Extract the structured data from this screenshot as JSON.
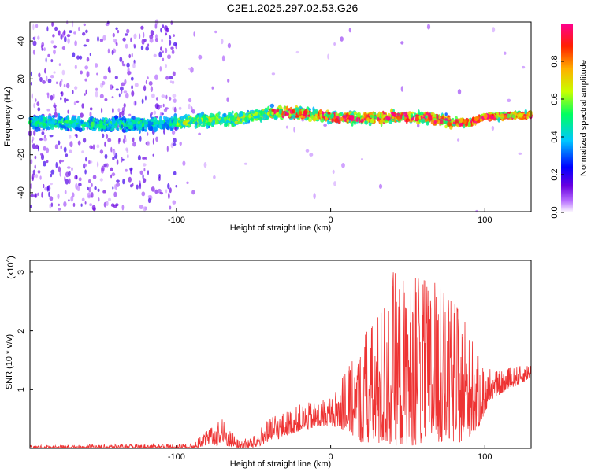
{
  "title": "C2E1.2025.297.02.53.G26",
  "chart_data": [
    {
      "type": "heatmap",
      "name": "spectrogram",
      "xlabel": "Height of straight line (km)",
      "ylabel": "Frequency (Hz)",
      "xlim": [
        -195,
        130
      ],
      "ylim": [
        -50,
        50
      ],
      "xticks": [
        -100,
        0,
        100
      ],
      "yticks": [
        -40,
        -20,
        0,
        20,
        40
      ],
      "xtick_labels": [
        "-100",
        "0",
        "100"
      ],
      "ytick_labels": [
        "-40",
        "-20",
        "0",
        "20",
        "40"
      ],
      "colorbar": {
        "label": "Normalized spectral amplitude",
        "range": [
          0,
          1
        ],
        "ticks": [
          0.0,
          0.2,
          0.4,
          0.6,
          0.8
        ],
        "tick_labels": [
          "0.0",
          "0.2",
          "0.4",
          "0.6",
          "0.8"
        ]
      },
      "ridge_center_hz": [
        {
          "x": -190,
          "f": -3
        },
        {
          "x": -150,
          "f": -4
        },
        {
          "x": -110,
          "f": -4
        },
        {
          "x": -90,
          "f": -2
        },
        {
          "x": -60,
          "f": -1
        },
        {
          "x": -40,
          "f": 2
        },
        {
          "x": -20,
          "f": 2
        },
        {
          "x": 0,
          "f": 0
        },
        {
          "x": 20,
          "f": -1
        },
        {
          "x": 40,
          "f": 0
        },
        {
          "x": 60,
          "f": 0
        },
        {
          "x": 80,
          "f": -3
        },
        {
          "x": 90,
          "f": -3
        },
        {
          "x": 100,
          "f": 0
        },
        {
          "x": 130,
          "f": 1
        }
      ]
    },
    {
      "type": "line",
      "name": "snr",
      "xlabel": "Height of straight line (km)",
      "ylabel": "SNR (10 * v/v)",
      "scale_label": "(x10",
      "scale_exponent": "4",
      "scale_close": ")",
      "xlim": [
        -195,
        130
      ],
      "ylim": [
        0,
        3.2
      ],
      "xticks": [
        -100,
        0,
        100
      ],
      "yticks": [
        1,
        2,
        3
      ],
      "xtick_labels": [
        "-100",
        "0",
        "100"
      ],
      "ytick_labels": [
        "1",
        "2",
        "3"
      ],
      "color": "#ee3333",
      "envelope": [
        {
          "x": -195,
          "lo": 0.0,
          "hi": 0.05
        },
        {
          "x": -90,
          "lo": 0.0,
          "hi": 0.08
        },
        {
          "x": -80,
          "lo": 0.05,
          "hi": 0.3
        },
        {
          "x": -70,
          "lo": 0.05,
          "hi": 0.5
        },
        {
          "x": -60,
          "lo": 0.0,
          "hi": 0.15
        },
        {
          "x": -50,
          "lo": 0.0,
          "hi": 0.2
        },
        {
          "x": -40,
          "lo": 0.1,
          "hi": 0.5
        },
        {
          "x": -20,
          "lo": 0.3,
          "hi": 0.75
        },
        {
          "x": 0,
          "lo": 0.4,
          "hi": 0.85
        },
        {
          "x": 10,
          "lo": 0.3,
          "hi": 1.3
        },
        {
          "x": 20,
          "lo": 0.1,
          "hi": 1.8
        },
        {
          "x": 35,
          "lo": 0.05,
          "hi": 2.6
        },
        {
          "x": 40,
          "lo": 0.05,
          "hi": 3.0
        },
        {
          "x": 55,
          "lo": 0.05,
          "hi": 2.9
        },
        {
          "x": 70,
          "lo": 0.1,
          "hi": 2.8
        },
        {
          "x": 85,
          "lo": 0.1,
          "hi": 2.3
        },
        {
          "x": 95,
          "lo": 0.3,
          "hi": 1.6
        },
        {
          "x": 105,
          "lo": 0.85,
          "hi": 1.3
        },
        {
          "x": 130,
          "lo": 1.2,
          "hi": 1.45
        }
      ]
    }
  ]
}
